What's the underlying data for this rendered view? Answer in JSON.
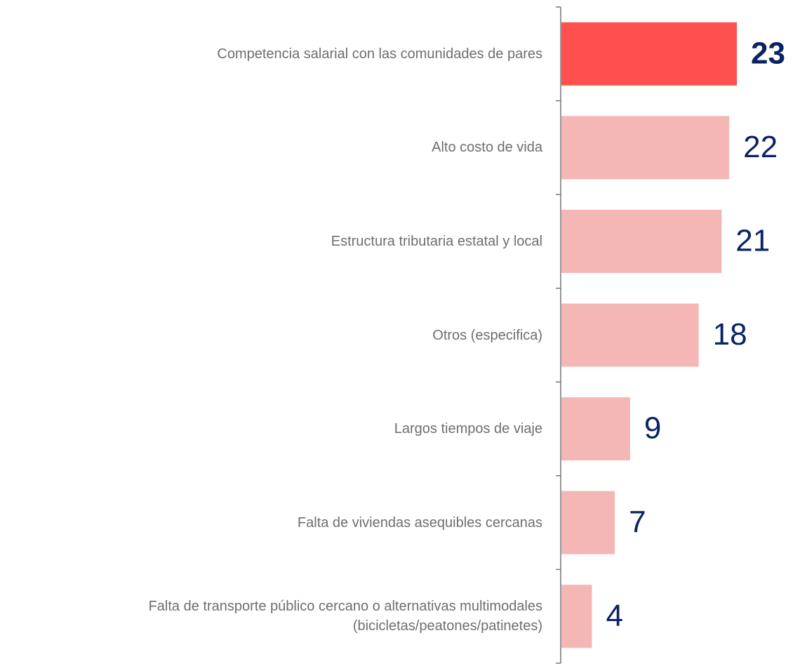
{
  "chart_data": {
    "type": "bar",
    "orientation": "horizontal",
    "categories": [
      "Competencia salarial con las comunidades de pares",
      "Alto costo de vida",
      "Estructura tributaria estatal y local",
      "Otros (especifica) ",
      "Largos tiempos de viaje",
      "Falta de viviendas asequibles cercanas",
      "Falta de transporte público cercano o alternativas multimodales\n(bicicletas/peatones/patinetes)"
    ],
    "values": [
      23,
      22,
      21,
      18,
      9,
      7,
      4
    ],
    "color": "#f5b6b6",
    "highlight_color": "#ff5050",
    "highlight_index": 0
  }
}
